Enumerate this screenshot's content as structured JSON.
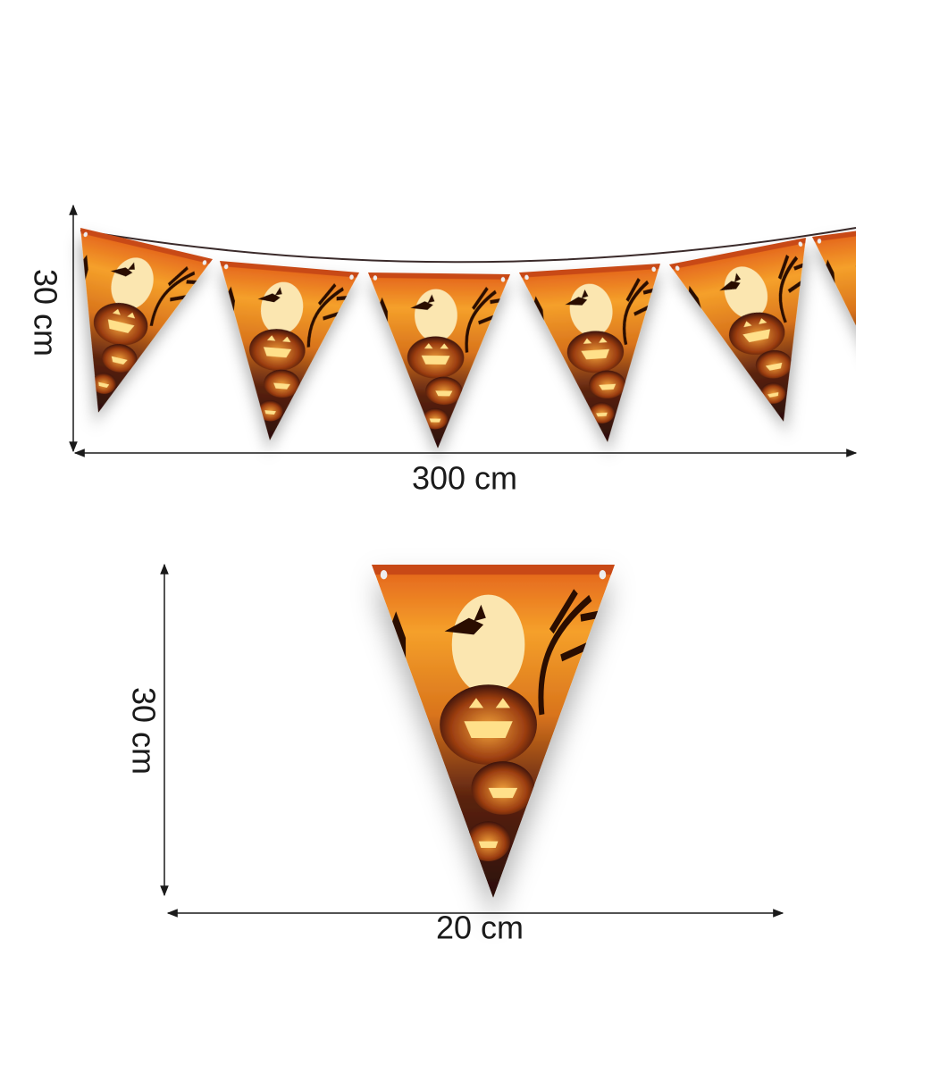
{
  "garland": {
    "height_label": "30 cm",
    "width_label": "300 cm"
  },
  "flag": {
    "height_label": "30 cm",
    "width_label": "20 cm"
  }
}
